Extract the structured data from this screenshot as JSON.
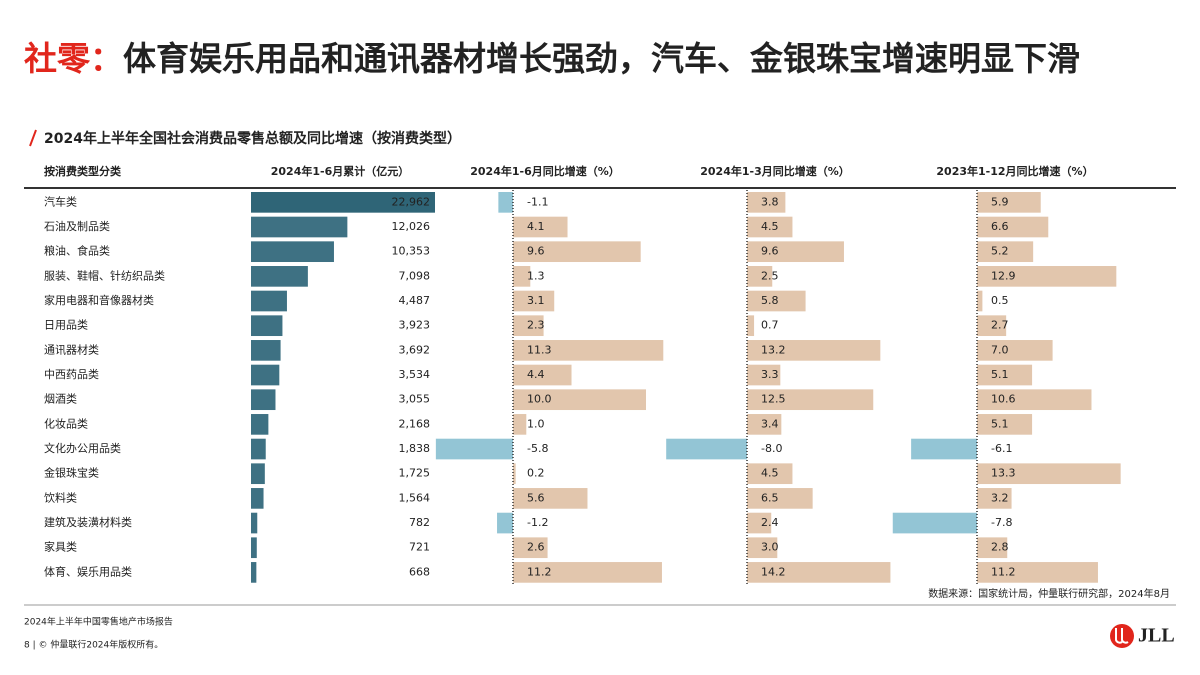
{
  "title_prefix": "社零：",
  "title": "体育娱乐用品和通讯器材增长强劲，汽车、金银珠宝增速明显下滑",
  "subtitle": "2024年上半年全国社会消费品零售总额及同比增速（按消费类型）",
  "category_header": "按消费类型分类",
  "categories": [
    "汽车类",
    "石油及制品类",
    "粮油、食品类",
    "服装、鞋帽、针纺织品类",
    "家用电器和音像器材类",
    "日用品类",
    "通讯器材类",
    "中西药品类",
    "烟酒类",
    "化妆品类",
    "文化办公用品类",
    "金银珠宝类",
    "饮料类",
    "建筑及装潢材料类",
    "家具类",
    "体育、娱乐用品类"
  ],
  "columns": [
    {
      "header": "2024年1-6月累计（亿元）",
      "color": "#3e7183",
      "values": [
        22962,
        12026,
        10353,
        7098,
        4487,
        3923,
        3692,
        3534,
        3055,
        2168,
        1838,
        1725,
        1564,
        782,
        721,
        668
      ],
      "value_labels": [
        "22,962",
        "12,026",
        "10,353",
        "7,098",
        "4,487",
        "3,923",
        "3,692",
        "3,534",
        "3,055",
        "2,168",
        "1,838",
        "1,725",
        "1,564",
        "782",
        "721",
        "668"
      ]
    },
    {
      "header": "2024年1-6月同比增速（%）",
      "values": [
        -1.1,
        4.1,
        9.6,
        1.3,
        3.1,
        2.3,
        11.3,
        4.4,
        10.0,
        1.0,
        -5.8,
        0.2,
        5.6,
        -1.2,
        2.6,
        11.2
      ],
      "value_labels": [
        "-1.1",
        "4.1",
        "9.6",
        "1.3",
        "3.1",
        "2.3",
        "11.3",
        "4.4",
        "10.0",
        "1.0",
        "-5.8",
        "0.2",
        "5.6",
        "-1.2",
        "2.6",
        "11.2"
      ]
    },
    {
      "header": "2024年1-3月同比增速（%）",
      "values": [
        3.8,
        4.5,
        9.6,
        2.5,
        5.8,
        0.7,
        13.2,
        3.3,
        12.5,
        3.4,
        -8.0,
        4.5,
        6.5,
        2.4,
        3.0,
        14.2
      ],
      "value_labels": [
        "3.8",
        "4.5",
        "9.6",
        "2.5",
        "5.8",
        "0.7",
        "13.2",
        "3.3",
        "12.5",
        "3.4",
        "-8.0",
        "4.5",
        "6.5",
        "2.4",
        "3.0",
        "14.2"
      ]
    },
    {
      "header": "2023年1-12月同比增速（%）",
      "values": [
        5.9,
        6.6,
        5.2,
        12.9,
        0.5,
        2.7,
        7.0,
        5.1,
        10.6,
        5.1,
        -6.1,
        13.3,
        3.2,
        -7.8,
        2.8,
        11.2
      ],
      "value_labels": [
        "5.9",
        "6.6",
        "5.2",
        "12.9",
        "0.5",
        "2.7",
        "7.0",
        "5.1",
        "10.6",
        "5.1",
        "-6.1",
        "13.3",
        "3.2",
        "-7.8",
        "2.8",
        "11.2"
      ]
    }
  ],
  "positive_color": "#e2c6ad",
  "negative_color": "#93c5d5",
  "source": "数据来源：国家统计局，仲量联行研究部，2024年8月",
  "report": "2024年上半年中国零售地产市场报告",
  "copyright": "8 | © 仲量联行2024年版权所有。",
  "logo": "JLL"
}
